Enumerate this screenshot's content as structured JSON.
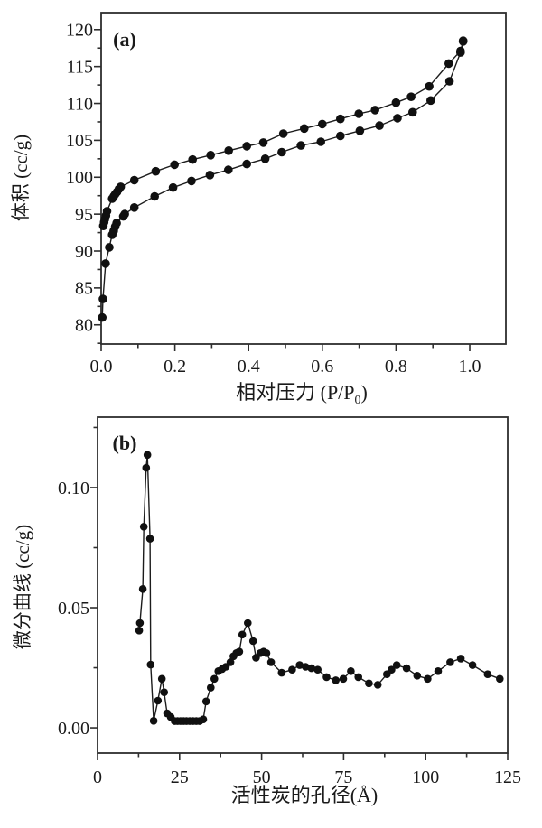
{
  "figure": {
    "background": "#ffffff",
    "ink": "#1a1a1a",
    "frame_color": "#2e2e2e",
    "data_color": "#101010"
  },
  "chart_data": [
    {
      "type": "line",
      "panel_label": "(a)",
      "xlabel": {
        "pre": "相对压力 (P/P",
        "sub": "0",
        "post": ")"
      },
      "ylabel": "体积 (cc/g)",
      "xlim": [
        0,
        1.098
      ],
      "ylim": [
        77.4,
        122.3
      ],
      "xticks": [
        0.0,
        0.2,
        0.4,
        0.6,
        0.8,
        1.0
      ],
      "xtick_labels": [
        "0.0",
        "0.2",
        "0.4",
        "0.6",
        "0.8",
        "1.0"
      ],
      "xticks_minor": [
        0.1,
        0.3,
        0.5,
        0.7,
        0.9
      ],
      "yticks": [
        80,
        85,
        90,
        95,
        100,
        105,
        110,
        115,
        120
      ],
      "ytick_labels": [
        "80",
        "85",
        "90",
        "95",
        "100",
        "105",
        "110",
        "115",
        "120"
      ],
      "yticks_minor": [
        77.5,
        82.5,
        87.5,
        92.5,
        97.5,
        102.5,
        107.5,
        112.5,
        117.5
      ],
      "grid": false,
      "legend": "none",
      "marker": "circle",
      "series": [
        {
          "name": "adsorption",
          "x": [
            0.003,
            0.005,
            0.012,
            0.022,
            0.03,
            0.034,
            0.038,
            0.042,
            0.06,
            0.064,
            0.09,
            0.145,
            0.195,
            0.245,
            0.295,
            0.345,
            0.395,
            0.445,
            0.49,
            0.542,
            0.596,
            0.649,
            0.702,
            0.755,
            0.804,
            0.845,
            0.894,
            0.945,
            0.975,
            0.982
          ],
          "y": [
            81.0,
            83.5,
            88.3,
            90.5,
            92.2,
            92.7,
            93.3,
            93.8,
            94.7,
            95.0,
            95.9,
            97.4,
            98.6,
            99.5,
            100.3,
            101.0,
            101.8,
            102.5,
            103.4,
            104.3,
            104.8,
            105.6,
            106.3,
            107.0,
            108.0,
            108.8,
            110.4,
            113.0,
            116.9,
            118.4
          ]
        },
        {
          "name": "desorption",
          "x": [
            0.006,
            0.008,
            0.01,
            0.013,
            0.016,
            0.03,
            0.034,
            0.038,
            0.043,
            0.048,
            0.053,
            0.09,
            0.148,
            0.199,
            0.248,
            0.297,
            0.346,
            0.395,
            0.44,
            0.494,
            0.551,
            0.6,
            0.649,
            0.699,
            0.743,
            0.8,
            0.841,
            0.89,
            0.943,
            0.975,
            0.982
          ],
          "y": [
            93.4,
            93.9,
            94.3,
            94.8,
            95.4,
            97.1,
            97.4,
            97.7,
            98.0,
            98.4,
            98.7,
            99.6,
            100.8,
            101.7,
            102.4,
            103.0,
            103.6,
            104.2,
            104.7,
            105.9,
            106.6,
            107.2,
            107.9,
            108.6,
            109.1,
            110.1,
            110.9,
            112.3,
            115.4,
            117.1,
            118.5
          ]
        }
      ]
    },
    {
      "type": "line",
      "panel_label": "(b)",
      "xlabel": {
        "pre": "活性炭的孔径(Å)",
        "sub": "",
        "post": ""
      },
      "ylabel": "微分曲线 (cc/g)",
      "xlim": [
        0,
        125
      ],
      "ylim": [
        -0.0105,
        0.1293
      ],
      "xticks": [
        0,
        25,
        50,
        75,
        100,
        125
      ],
      "xtick_labels": [
        "0",
        "25",
        "50",
        "75",
        "100",
        "125"
      ],
      "xticks_minor": [
        12.5,
        37.5,
        62.5,
        87.5,
        112.5
      ],
      "yticks": [
        0,
        0.05,
        0.1
      ],
      "ytick_labels": [
        "0.00",
        "0.05",
        "0.10"
      ],
      "yticks_minor": [
        0.025,
        0.075,
        0.125
      ],
      "grid": false,
      "legend": "none",
      "marker": "circle",
      "series": [
        {
          "name": "pore-size-distribution",
          "x": [
            12.7,
            12.9,
            13.8,
            14.1,
            14.8,
            15.2,
            16.0,
            16.2,
            17.1,
            18.4,
            19.6,
            20.3,
            21.2,
            22.3,
            23.5,
            24.4,
            25.3,
            26.2,
            27.1,
            28.1,
            29.1,
            30.1,
            31.1,
            32.2,
            33.1,
            34.5,
            35.6,
            36.8,
            38.0,
            39.1,
            40.5,
            41.4,
            42.3,
            43.2,
            44.1,
            45.8,
            47.4,
            48.3,
            49.6,
            50.6,
            51.5,
            52.9,
            56.1,
            59.3,
            61.6,
            63.4,
            65.2,
            67.1,
            69.8,
            72.6,
            74.9,
            77.2,
            79.5,
            82.7,
            85.4,
            88.2,
            89.6,
            91.2,
            94.2,
            97.4,
            100.6,
            103.8,
            107.5,
            110.7,
            114.3,
            118.9,
            122.6
          ],
          "y": [
            0.0405,
            0.0436,
            0.0578,
            0.0837,
            0.1082,
            0.1136,
            0.0787,
            0.0263,
            0.0029,
            0.0113,
            0.0204,
            0.0148,
            0.006,
            0.0045,
            0.0028,
            0.0028,
            0.0028,
            0.0028,
            0.0028,
            0.0028,
            0.0028,
            0.0028,
            0.0028,
            0.0035,
            0.011,
            0.0167,
            0.0204,
            0.0236,
            0.0245,
            0.0254,
            0.0273,
            0.0298,
            0.0311,
            0.0317,
            0.0388,
            0.0436,
            0.0361,
            0.0292,
            0.0311,
            0.0317,
            0.0311,
            0.0273,
            0.0229,
            0.0242,
            0.0261,
            0.0254,
            0.0248,
            0.0242,
            0.0211,
            0.0198,
            0.0204,
            0.0236,
            0.0211,
            0.0185,
            0.0179,
            0.0223,
            0.0242,
            0.0261,
            0.0248,
            0.0217,
            0.0204,
            0.0236,
            0.0273,
            0.0288,
            0.0261,
            0.0223,
            0.0204
          ]
        }
      ]
    }
  ]
}
